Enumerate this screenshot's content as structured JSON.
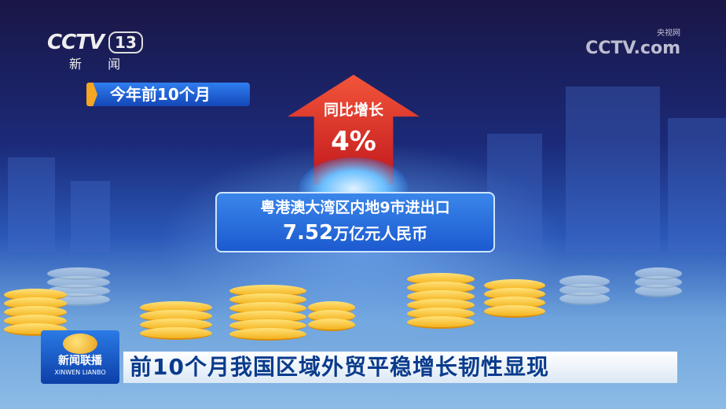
{
  "logo": {
    "brand": "CCTV",
    "channel": "13",
    "name": "新 闻"
  },
  "watermark": {
    "brand": "CCTV.com",
    "cn": "央视网"
  },
  "period": "今年前10个月",
  "growth": {
    "label": "同比增长",
    "value": "4%"
  },
  "card": {
    "title": "粤港澳大湾区内地9市进出口",
    "amount": "7.52",
    "unit": "万亿元人民币"
  },
  "program": {
    "name": "新闻联播",
    "pinyin": "XINWEN LIANBO"
  },
  "headline": "前10个月我国区域外贸平稳增长韧性显现",
  "colors": {
    "arrow": "#d42a24",
    "card": "#2a70de",
    "period_marker": "#f5a623",
    "headline_text": "#0a3b8c"
  }
}
